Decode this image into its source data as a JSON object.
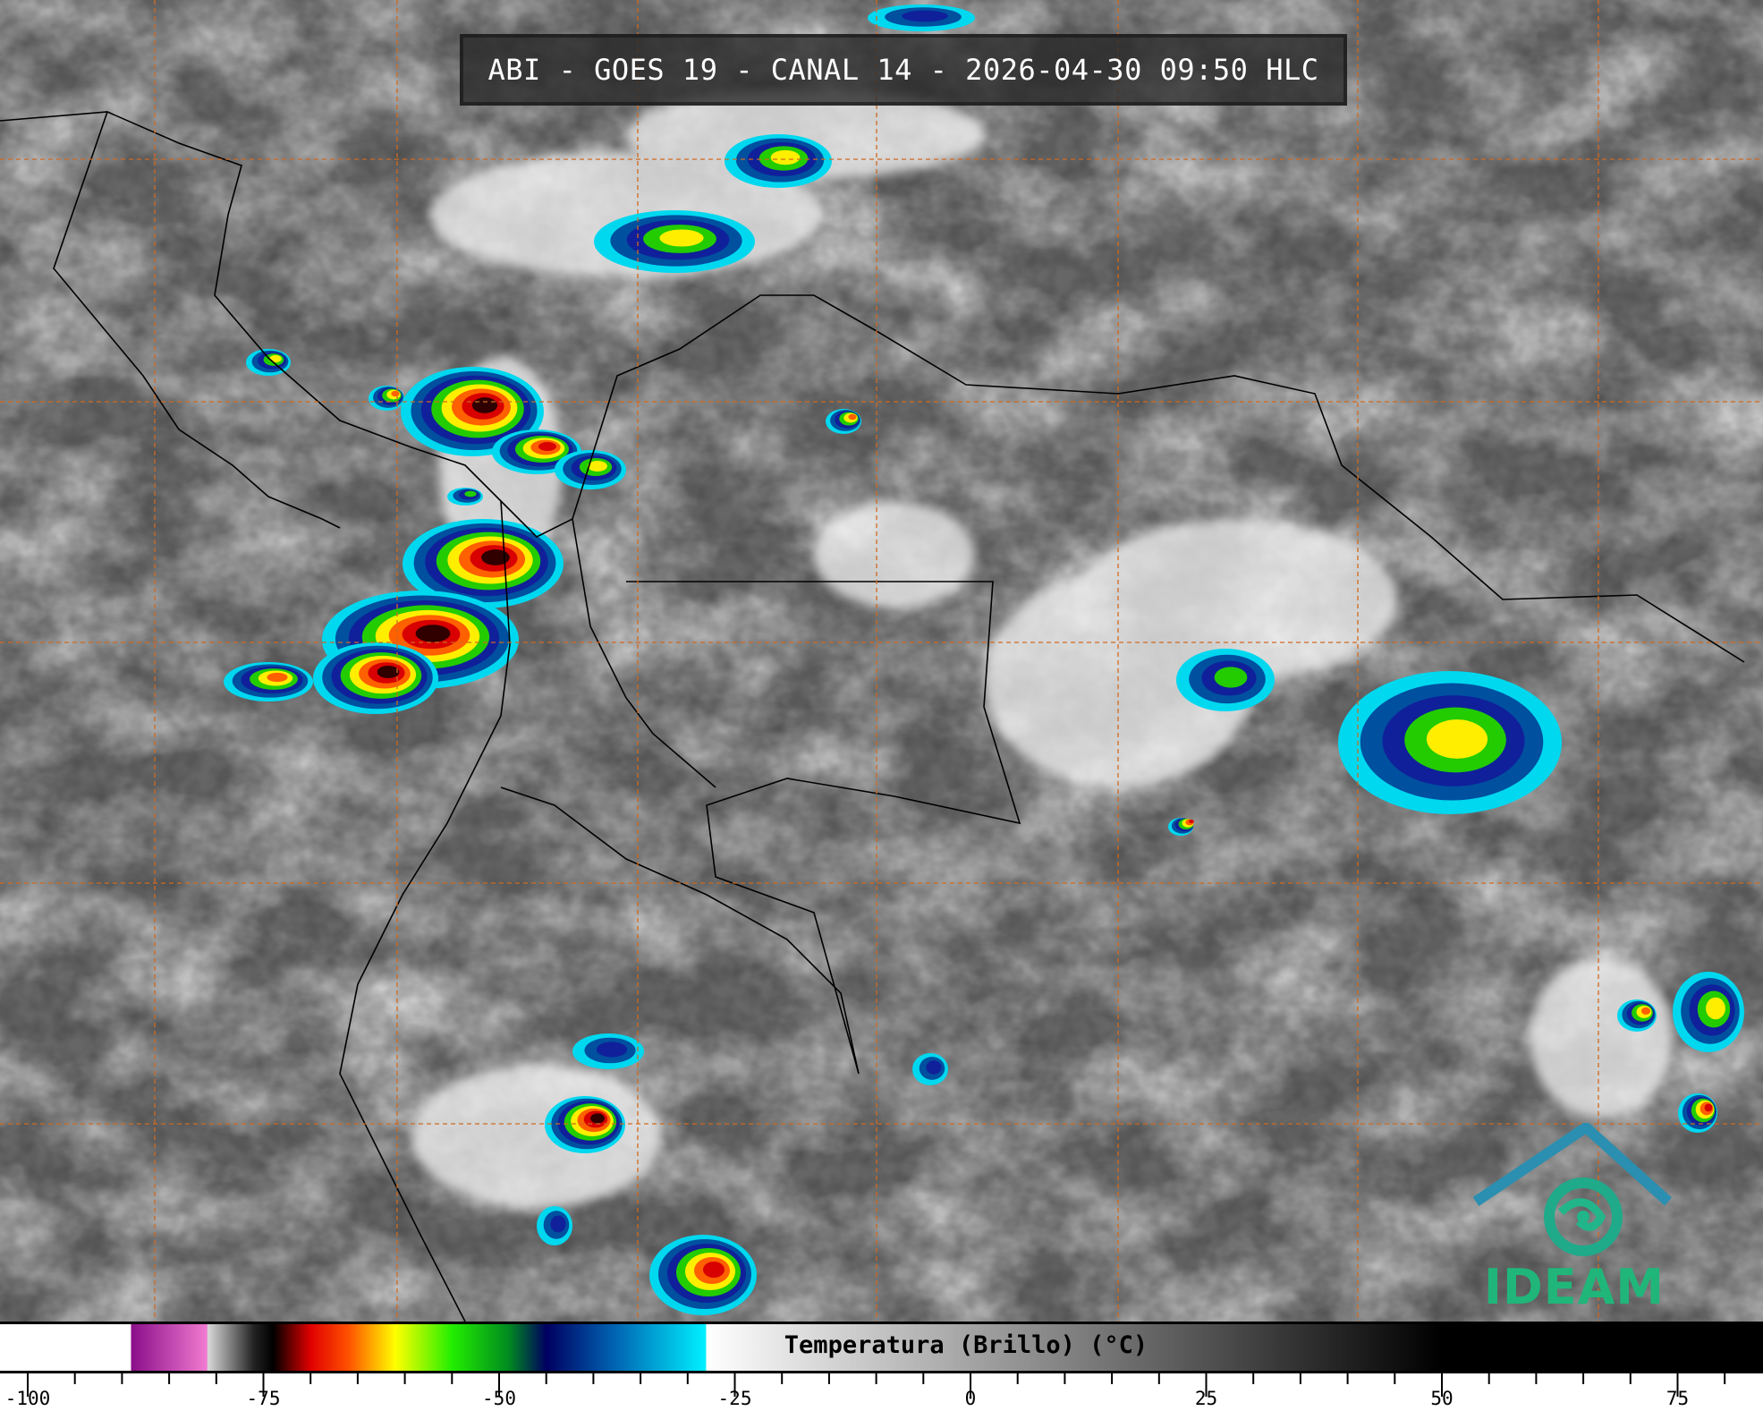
{
  "title": "ABI - GOES 19 - CANAL 14 - 2026-04-30 09:50 HLC",
  "colorbar": {
    "label": "Temperatura (Brillo) (°C)",
    "unit": "°C",
    "range": [
      -103,
      85
    ],
    "tick_labels": [
      "-100",
      "-75",
      "-50",
      "-25",
      "0",
      "25",
      "50",
      "75"
    ],
    "tick_values": [
      -100,
      -75,
      -50,
      -25,
      0,
      25,
      50,
      75
    ],
    "color_stops": [
      {
        "t": -103,
        "color": "#ffffff"
      },
      {
        "t": -89.1,
        "color": "#ffffff"
      },
      {
        "t": -89,
        "color": "#8a0f8a"
      },
      {
        "t": -81,
        "color": "#f07ad0"
      },
      {
        "t": -80.9,
        "color": "#d8d8d8"
      },
      {
        "t": -76,
        "color": "#222222"
      },
      {
        "t": -74,
        "color": "#000000"
      },
      {
        "t": -70,
        "color": "#e00000"
      },
      {
        "t": -66,
        "color": "#ff5000"
      },
      {
        "t": -61,
        "color": "#ffff00"
      },
      {
        "t": -55,
        "color": "#22ee00"
      },
      {
        "t": -49,
        "color": "#008a20"
      },
      {
        "t": -45,
        "color": "#000060"
      },
      {
        "t": -38,
        "color": "#0060b0"
      },
      {
        "t": -28.1,
        "color": "#00f0ff"
      },
      {
        "t": -28,
        "color": "#ffffff"
      },
      {
        "t": 50,
        "color": "#000000"
      },
      {
        "t": 85,
        "color": "#000000"
      }
    ]
  },
  "grid_color": "#d2691e",
  "logo": {
    "text": "IDEAM",
    "color": "#20b67a"
  }
}
